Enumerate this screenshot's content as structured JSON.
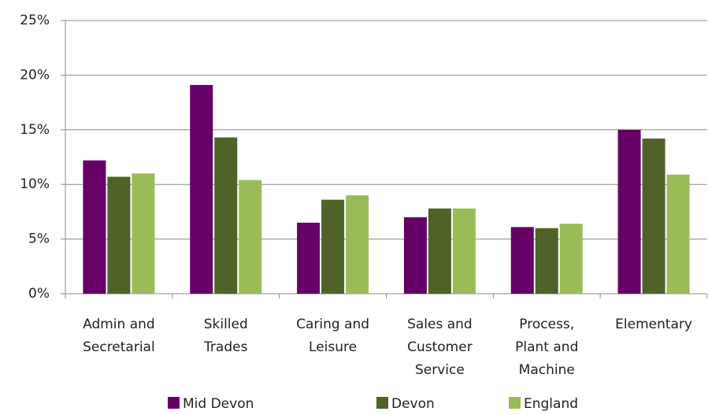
{
  "chart_data": {
    "type": "bar",
    "categories": [
      "Admin and Secretarial",
      "Skilled Trades",
      "Caring and Leisure",
      "Sales and Customer Service",
      "Process, Plant and Machine",
      "Elementary"
    ],
    "series": [
      {
        "name": "Mid Devon",
        "color": "#660066",
        "values": [
          12.2,
          19.1,
          6.5,
          7.0,
          6.1,
          15.0
        ]
      },
      {
        "name": "Devon",
        "color": "#4f6228",
        "values": [
          10.7,
          14.3,
          8.6,
          7.8,
          6.0,
          14.2
        ]
      },
      {
        "name": "England",
        "color": "#9bbb59",
        "values": [
          11.0,
          10.4,
          9.0,
          7.8,
          6.4,
          10.9
        ]
      }
    ],
    "ylim": [
      0,
      25
    ],
    "yticks": [
      {
        "value": 0,
        "label": "0%"
      },
      {
        "value": 5,
        "label": "5%"
      },
      {
        "value": 10,
        "label": "10%"
      },
      {
        "value": 15,
        "label": "15%"
      },
      {
        "value": 20,
        "label": "20%"
      },
      {
        "value": 25,
        "label": "25%"
      }
    ],
    "grid": true,
    "legend": "bottom"
  }
}
